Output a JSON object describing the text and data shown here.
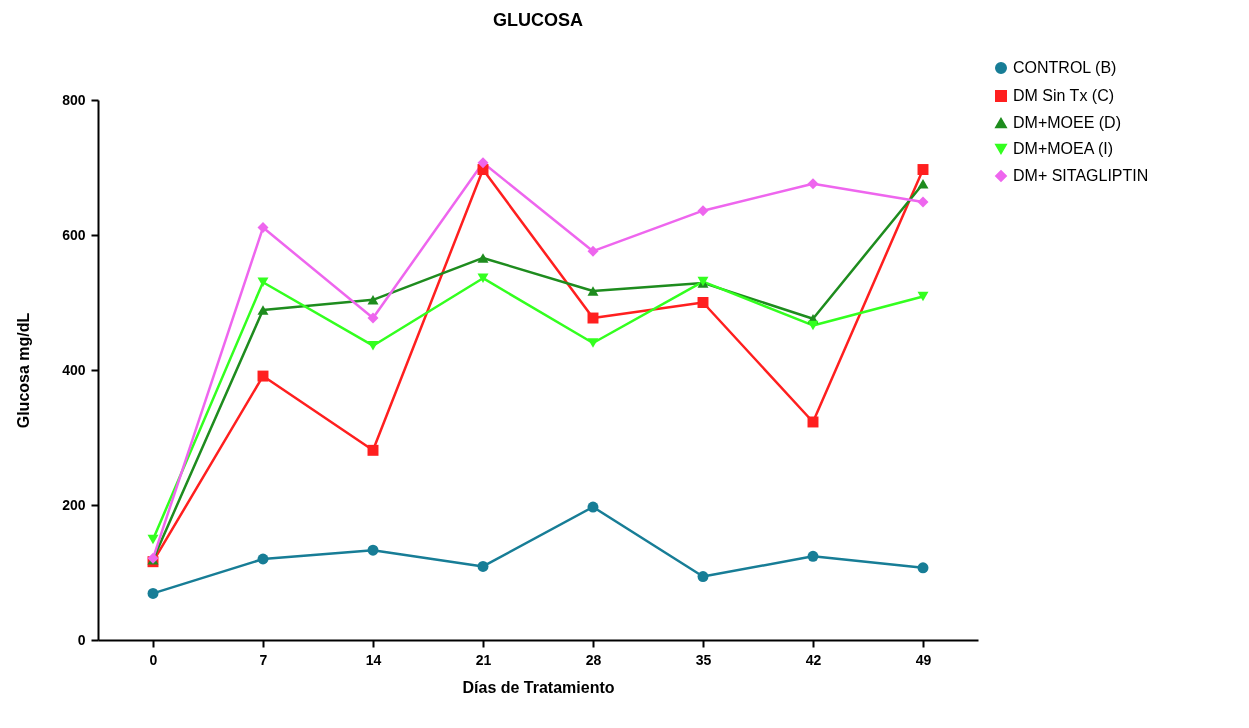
{
  "chart_data": {
    "type": "line",
    "title": "GLUCOSA",
    "xlabel": "Días de Tratamiento",
    "ylabel": "Glucosa mg/dL",
    "x": [
      0,
      7,
      14,
      21,
      28,
      35,
      42,
      49
    ],
    "xlim": [
      -3.5,
      52.5
    ],
    "xticks": [
      0,
      7,
      14,
      21,
      28,
      35,
      42,
      49
    ],
    "ylim": [
      0,
      800
    ],
    "yticks": [
      0,
      200,
      400,
      600,
      800
    ],
    "grid": false,
    "legend": "top right",
    "line_style": "solid",
    "series": [
      {
        "name": "CONTROL (B)",
        "color": "#177d96",
        "marker": "circle",
        "values": [
          69,
          120,
          133,
          109,
          197,
          94,
          124,
          107
        ]
      },
      {
        "name": "DM Sin Tx (C)",
        "color": "#ff1f1f",
        "marker": "square",
        "values": [
          116,
          391,
          281,
          697,
          477,
          500,
          323,
          697
        ]
      },
      {
        "name": "DM+MOEE (D)",
        "color": "#1e8c1e",
        "marker": "triangle",
        "values": [
          119,
          489,
          504,
          566,
          517,
          529,
          476,
          676
        ]
      },
      {
        "name": "DM+MOEA (I)",
        "color": "#33ff1f",
        "marker": "triangle-down",
        "values": [
          149,
          530,
          436,
          536,
          440,
          531,
          466,
          509
        ]
      },
      {
        "name": "DM+ SITAGLIPTIN",
        "color": "#ee66ee",
        "marker": "diamond",
        "values": [
          121,
          611,
          477,
          707,
          576,
          636,
          676,
          649
        ]
      }
    ]
  }
}
